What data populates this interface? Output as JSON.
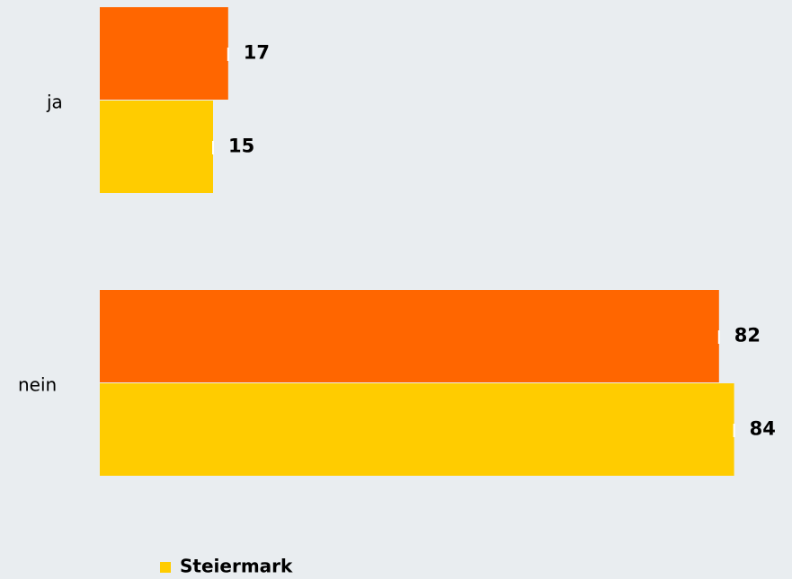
{
  "chart_data": {
    "type": "hbar",
    "categories": [
      "ja",
      "nein"
    ],
    "series": [
      {
        "color": "#ff6600",
        "values": [
          17,
          82
        ]
      },
      {
        "name": "Steiermark",
        "color": "#ffcc00",
        "values": [
          15,
          84
        ]
      }
    ]
  }
}
